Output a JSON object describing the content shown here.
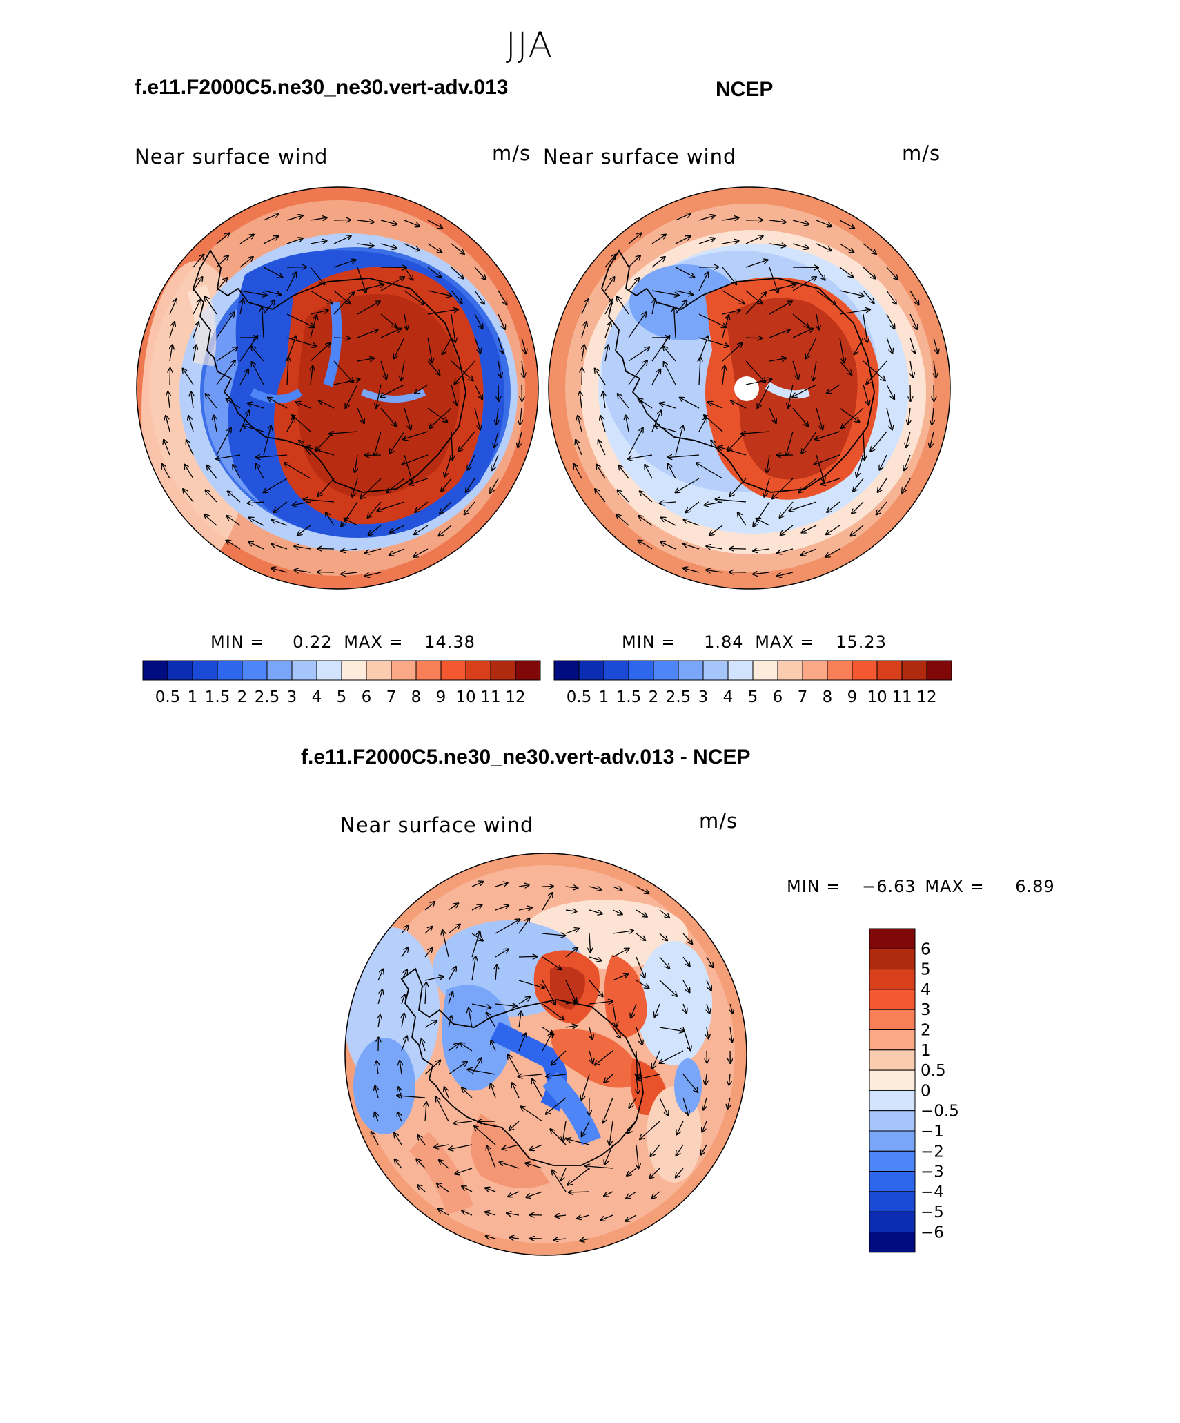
{
  "figure": {
    "title": "JJA"
  },
  "panels": [
    {
      "case_title": "f.e11.F2000C5.ne30_ne30.vert-adv.013",
      "field_label": "Near surface wind",
      "units": "m/s",
      "min_label": "MIN =",
      "min_value": "0.22",
      "max_label": "MAX =",
      "max_value": "14.38"
    },
    {
      "case_title": "NCEP",
      "field_label": "Near surface wind",
      "units": "m/s",
      "min_label": "MIN =",
      "min_value": "1.84",
      "max_label": "MAX =",
      "max_value": "15.23"
    },
    {
      "case_title": "f.e11.F2000C5.ne30_ne30.vert-adv.013 - NCEP",
      "field_label": "Near surface wind",
      "units": "m/s",
      "min_label": "MIN =",
      "min_value": "−6.63",
      "max_label": "MAX =",
      "max_value": "6.89"
    }
  ],
  "colorbars": {
    "absolute": {
      "ticks": [
        "0.5",
        "1",
        "1.5",
        "2",
        "2.5",
        "3",
        "4",
        "5",
        "6",
        "7",
        "8",
        "9",
        "10",
        "11",
        "12"
      ],
      "colors": [
        "#000c80",
        "#0a2db4",
        "#1a4ad6",
        "#2e66ee",
        "#4f86f7",
        "#7aa6f9",
        "#a6c5fb",
        "#d2e4fd",
        "#fdebdc",
        "#fcccb0",
        "#fba886",
        "#f97f59",
        "#f35830",
        "#d8401c",
        "#b02a10",
        "#800808"
      ]
    },
    "difference": {
      "ticks": [
        "6",
        "5",
        "4",
        "3",
        "2",
        "1",
        "0.5",
        "0",
        "−0.5",
        "−1",
        "−2",
        "−3",
        "−4",
        "−5",
        "−6"
      ],
      "colors": [
        "#800808",
        "#b02a10",
        "#d8401c",
        "#f35830",
        "#f97f59",
        "#fba886",
        "#fcccb0",
        "#fdebdc",
        "#d2e4fd",
        "#a6c5fb",
        "#7aa6f9",
        "#4f86f7",
        "#2e66ee",
        "#1a4ad6",
        "#0a2db4",
        "#000c80"
      ]
    }
  },
  "map_colors": {
    "ocean_outer": "#f4a583",
    "ocean_mid": "#f6b898",
    "strong_red": "#cf3b1a",
    "mid_red": "#ec5c30",
    "deep_blue": "#1f4fd8",
    "mid_blue": "#5f90f5",
    "light_blue": "#b6d0fb",
    "pale_blue": "#dde9fd",
    "pale_peach": "#fbdcc6",
    "coast": "#000000"
  }
}
